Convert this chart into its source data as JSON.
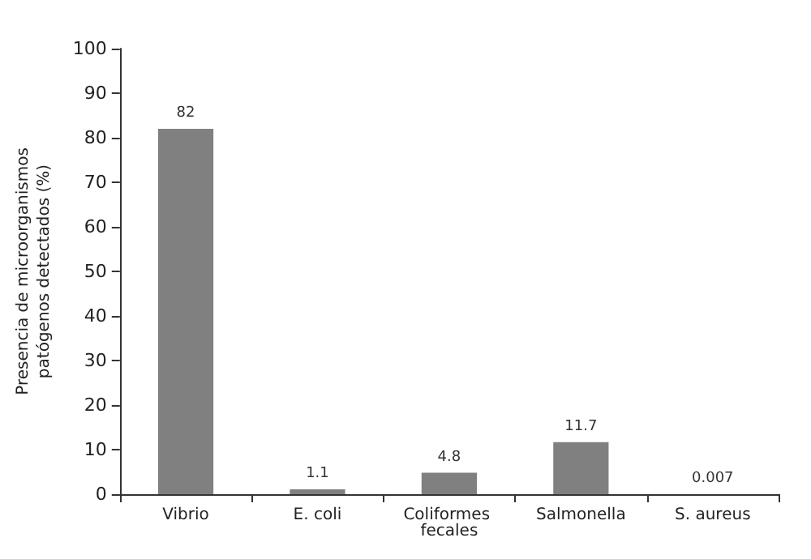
{
  "chart_data": {
    "type": "bar",
    "ylabel": "Presencia de microorganismos patógenos detectados (%)",
    "categories": [
      "Vibrio",
      "E. coli",
      "Coliformes fecales",
      "Salmonella",
      "S. aureus"
    ],
    "values": [
      82,
      1.1,
      4.8,
      11.7,
      0.007
    ],
    "color": "#808080",
    "ylim": [
      0,
      100
    ],
    "yticks": [
      0,
      10,
      20,
      30,
      40,
      50,
      60,
      70,
      80,
      90,
      100
    ],
    "grid": false,
    "data_labels": true
  }
}
